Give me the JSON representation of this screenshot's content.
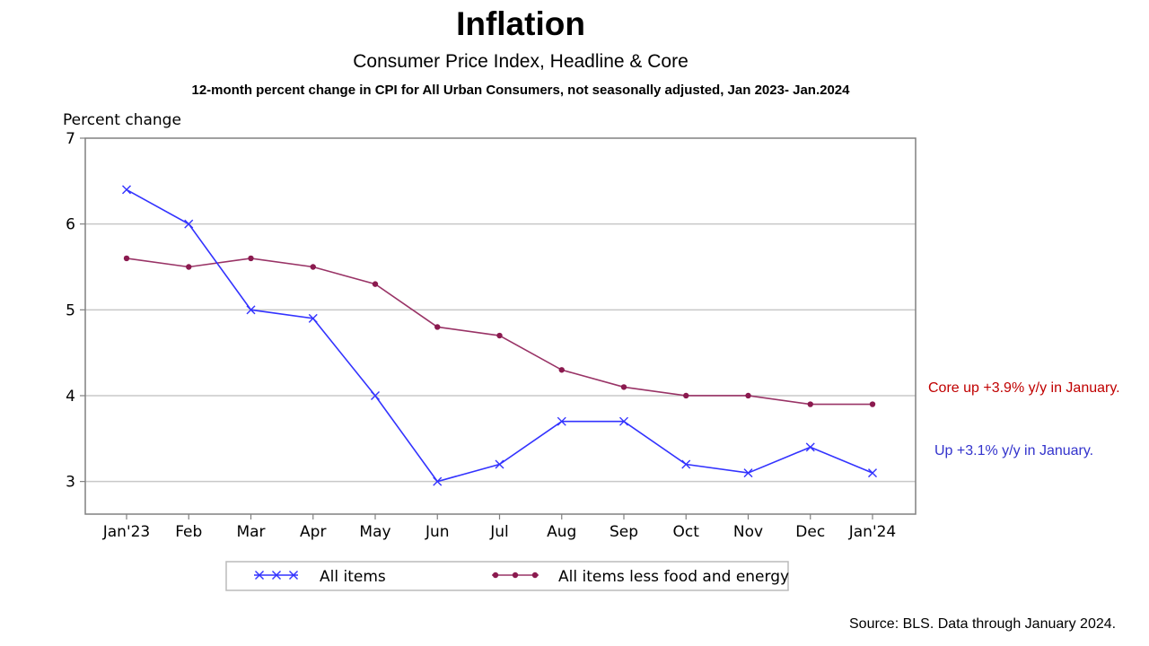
{
  "header": {
    "title": "Inflation",
    "subtitle": "Consumer Price Index, Headline & Core",
    "subtitle2": "12-month percent change in CPI for All Urban Consumers, not seasonally adjusted, Jan 2023- Jan.2024"
  },
  "annotations": {
    "core": "Core up +3.9% y/y in January.",
    "headline": "Up +3.1% y/y in January."
  },
  "source": "Source: BLS. Data through January 2024.",
  "colors": {
    "headline": "#3333ff",
    "core": "#993366",
    "core_marker": "#8b1a4f",
    "annotation_core": "#c00000",
    "annotation_headline": "#3333cc",
    "grid": "#c8c8c8",
    "frame": "#808080"
  },
  "chart_data": {
    "type": "line",
    "title": "Inflation",
    "ylabel": "Percent change",
    "xlabel": "",
    "categories": [
      "Jan'23",
      "Feb",
      "Mar",
      "Apr",
      "May",
      "Jun",
      "Jul",
      "Aug",
      "Sep",
      "Oct",
      "Nov",
      "Dec",
      "Jan'24"
    ],
    "series": [
      {
        "name": "All items",
        "marker": "x",
        "values": [
          6.4,
          6.0,
          5.0,
          4.9,
          4.0,
          3.0,
          3.2,
          3.7,
          3.7,
          3.2,
          3.1,
          3.4,
          3.1
        ]
      },
      {
        "name": "All items less food and energy",
        "marker": "dot",
        "values": [
          5.6,
          5.5,
          5.6,
          5.5,
          5.3,
          4.8,
          4.7,
          4.3,
          4.1,
          4.0,
          4.0,
          3.9,
          3.9
        ]
      }
    ],
    "ylim": [
      2.62,
      7
    ],
    "yticks": [
      3,
      4,
      5,
      6,
      7
    ],
    "grid": true,
    "legend": "bottom"
  }
}
